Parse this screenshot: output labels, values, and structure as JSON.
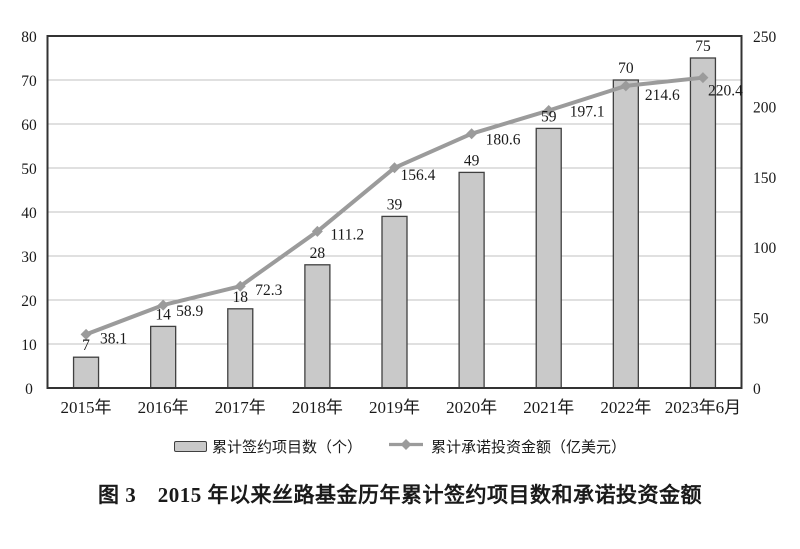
{
  "figure": {
    "caption": "图 3　2015 年以来丝路基金历年累计签约项目数和承诺投资金额"
  },
  "legend": {
    "items": [
      {
        "label": "累计签约项目数（个）",
        "swatch": "bar"
      },
      {
        "label": "累计承诺投资金额（亿美元）",
        "swatch": "line-diamond"
      }
    ]
  },
  "chart_data": {
    "type": "bar",
    "subtype": "combo-bar-line-dual-axis",
    "title": "图 3　2015 年以来丝路基金历年累计签约项目数和承诺投资金额",
    "categories": [
      "2015年",
      "2016年",
      "2017年",
      "2018年",
      "2019年",
      "2020年",
      "2021年",
      "2022年",
      "2023年6月"
    ],
    "series": [
      {
        "name": "累计签约项目数（个）",
        "type": "bar",
        "axis": "left",
        "values": [
          7,
          14,
          18,
          28,
          39,
          49,
          59,
          70,
          75
        ]
      },
      {
        "name": "累计承诺投资金额（亿美元）",
        "type": "line",
        "axis": "right",
        "marker": "diamond",
        "values": [
          38.1,
          58.9,
          72.3,
          111.2,
          156.4,
          180.6,
          197.1,
          214.6,
          220.4
        ]
      }
    ],
    "left_axis": {
      "min": 0,
      "max": 80,
      "ticks": [
        0,
        10,
        20,
        30,
        40,
        50,
        60,
        70,
        80
      ]
    },
    "right_axis": {
      "min": 0,
      "max": 250,
      "ticks": [
        0,
        50,
        100,
        150,
        200,
        250
      ]
    },
    "grid": true,
    "legend_position": "bottom",
    "colors": {
      "bar_fill": "#c9c9c9",
      "bar_border": "#404040",
      "line": "#9b9b9b",
      "grid": "#c0c0c0",
      "axis": "#333333",
      "text": "#1a1a1a"
    }
  }
}
